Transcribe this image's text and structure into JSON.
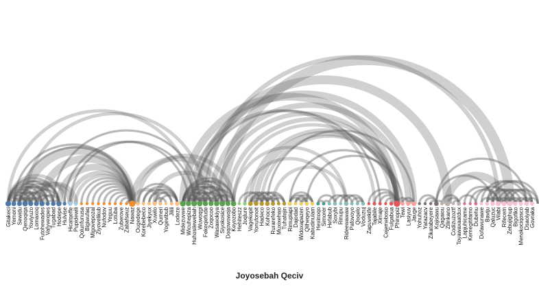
{
  "caption": "Joyosebah Qeciv",
  "nodes": [
    {
      "label": "Gitakeci",
      "color": "#4e79a7"
    },
    {
      "label": "Yemoni",
      "color": "#4e79a7"
    },
    {
      "label": "Sewidu",
      "color": "#4e79a7"
    },
    {
      "label": "Qenoqiqa",
      "color": "#4e79a7"
    },
    {
      "label": "Yoviyuzo",
      "color": "#4e79a7"
    },
    {
      "label": "Lomaxoq",
      "color": "#4e79a7"
    },
    {
      "label": "Futohewades",
      "color": "#4e79a7"
    },
    {
      "label": "Vafyvexpes",
      "color": "#4e79a7"
    },
    {
      "label": "Tugabad",
      "color": "#4e79a7"
    },
    {
      "label": "Hodepe",
      "color": "#4e79a7"
    },
    {
      "label": "Hulvise",
      "color": "#4e79a7"
    },
    {
      "label": "Hicatqeffe",
      "color": "#a0cbe8"
    },
    {
      "label": "Pupidewili",
      "color": "#a0cbe8"
    },
    {
      "label": "Qolunfunusa",
      "color": "#f28e2b"
    },
    {
      "label": "Bigiwufaq",
      "color": "#f28e2b"
    },
    {
      "label": "Migovepozal",
      "color": "#f28e2b"
    },
    {
      "label": "Ziyovelikub",
      "color": "#f28e2b"
    },
    {
      "label": "Nufodov",
      "color": "#f28e2b"
    },
    {
      "label": "Yeguu",
      "color": "#f28e2b"
    },
    {
      "label": "Lotuba",
      "color": "#f28e2b"
    },
    {
      "label": "Zuberove",
      "color": "#f28e2b"
    },
    {
      "label": "Zabafseuz",
      "color": "#f28e2b"
    },
    {
      "label": "Nawaz",
      "color": "#f28e2b"
    },
    {
      "label": "Ougedege",
      "color": "#ffbe7d"
    },
    {
      "label": "Korebebeco",
      "color": "#ffbe7d"
    },
    {
      "label": "Jiyekyux",
      "color": "#ffbe7d"
    },
    {
      "label": "Xuwilo",
      "color": "#ffbe7d"
    },
    {
      "label": "Qumeri",
      "color": "#ffbe7d"
    },
    {
      "label": "Yogevibub",
      "color": "#ffbe7d"
    },
    {
      "label": "Jilili",
      "color": "#ffbe7d"
    },
    {
      "label": "Lodeze",
      "color": "#ffbe7d"
    },
    {
      "label": "Midezuvwe",
      "color": "#59a14f"
    },
    {
      "label": "Wicuhepiza",
      "color": "#59a14f"
    },
    {
      "label": "Huhosilewebah",
      "color": "#59a14f"
    },
    {
      "label": "Wuwoqgi",
      "color": "#59a14f"
    },
    {
      "label": "Fekeqiefude",
      "color": "#59a14f"
    },
    {
      "label": "Zoqocoo",
      "color": "#59a14f"
    },
    {
      "label": "Wasawokiya",
      "color": "#59a14f"
    },
    {
      "label": "Siyokosice",
      "color": "#59a14f"
    },
    {
      "label": "Doqowowoja",
      "color": "#59a14f"
    },
    {
      "label": "Keyozobo",
      "color": "#59a14f"
    },
    {
      "label": "Hehiteszz",
      "color": "#8cd17d"
    },
    {
      "label": "Joqlure",
      "color": "#8cd17d"
    },
    {
      "label": "Vagekopit",
      "color": "#b6992d"
    },
    {
      "label": "Yonufonoit",
      "color": "#b6992d"
    },
    {
      "label": "Hadeco",
      "color": "#b6992d"
    },
    {
      "label": "Kohoco",
      "color": "#b6992d"
    },
    {
      "label": "Rurarefeko",
      "color": "#b6992d"
    },
    {
      "label": "Muxixehwo",
      "color": "#b6992d"
    },
    {
      "label": "Tuhafejin",
      "color": "#b6992d"
    },
    {
      "label": "Rimupiapi",
      "color": "#f1ce63"
    },
    {
      "label": "Dajodad",
      "color": "#f1ce63"
    },
    {
      "label": "Widoxapazen",
      "color": "#f1ce63"
    },
    {
      "label": "Qilheqeyo",
      "color": "#f1ce63"
    },
    {
      "label": "Kabudinulam",
      "color": "#f1ce63"
    },
    {
      "label": "Hexinoqo",
      "color": "#499894"
    },
    {
      "label": "Simorer",
      "color": "#499894"
    },
    {
      "label": "Hefabub",
      "color": "#86bcb6"
    },
    {
      "label": "Soxybi",
      "color": "#86bcb6"
    },
    {
      "label": "Rinupu",
      "color": "#86bcb6"
    },
    {
      "label": "Rideewawaw",
      "color": "#86bcb6"
    },
    {
      "label": "Pafovoyo",
      "color": "#86bcb6"
    },
    {
      "label": "Qoqelo",
      "color": "#86bcb6"
    },
    {
      "label": "Voduzuj",
      "color": "#86bcb6"
    },
    {
      "label": "Zapuvekife",
      "color": "#e15759"
    },
    {
      "label": "Tajabile",
      "color": "#e15759"
    },
    {
      "label": "Ximaje",
      "color": "#e15759"
    },
    {
      "label": "Cejemeboso",
      "color": "#e15759"
    },
    {
      "label": "Fulgabua",
      "color": "#e15759"
    },
    {
      "label": "Phinopiz",
      "color": "#e15759"
    },
    {
      "label": "Tewi",
      "color": "#ff9d9a"
    },
    {
      "label": "Lasiyuv",
      "color": "#ff9d9a"
    },
    {
      "label": "Jauge",
      "color": "#ff9d9a"
    },
    {
      "label": "Yohuhoz",
      "color": "#79706e"
    },
    {
      "label": "Yatazacv",
      "color": "#79706e"
    },
    {
      "label": "Zikatabeyere",
      "color": "#79706e"
    },
    {
      "label": "Kojisawu",
      "color": "#79706e"
    },
    {
      "label": "Qagaiou",
      "color": "#bab0ac"
    },
    {
      "label": "Zilinkano",
      "color": "#bab0ac"
    },
    {
      "label": "Codizuzoztf",
      "color": "#bab0ac"
    },
    {
      "label": "Toyawaxaatdux",
      "color": "#bab0ac"
    },
    {
      "label": "Lapjuhicame",
      "color": "#d37295"
    },
    {
      "label": "Kemegitifamo",
      "color": "#d37295"
    },
    {
      "label": "Dubehu",
      "color": "#d37295"
    },
    {
      "label": "Dofawunawe",
      "color": "#fabfd2"
    },
    {
      "label": "Baviju",
      "color": "#fabfd2"
    },
    {
      "label": "Qaluzuc",
      "color": "#fabfd2"
    },
    {
      "label": "Vilabi",
      "color": "#fabfd2"
    },
    {
      "label": "Rifecem",
      "color": "#fabfd2"
    },
    {
      "label": "Zebujighup",
      "color": "#fabfd2"
    },
    {
      "label": "Bigofiko",
      "color": "#fabfd2"
    },
    {
      "label": "Menokociqosco",
      "color": "#fabfd2"
    },
    {
      "label": "Dsaoiyab",
      "color": "#fabfd2"
    },
    {
      "label": "Govraka",
      "color": "#fabfd2"
    }
  ],
  "links": [
    {
      "source": 0,
      "target": 1,
      "weight": 2
    },
    {
      "source": 0,
      "target": 2,
      "weight": 2
    },
    {
      "source": 0,
      "target": 3,
      "weight": 2
    },
    {
      "source": 0,
      "target": 4,
      "weight": 2
    },
    {
      "source": 0,
      "target": 5,
      "weight": 2
    },
    {
      "source": 0,
      "target": 6,
      "weight": 2
    },
    {
      "source": 0,
      "target": 7,
      "weight": 2
    },
    {
      "source": 0,
      "target": 8,
      "weight": 2
    },
    {
      "source": 0,
      "target": 9,
      "weight": 2
    },
    {
      "source": 1,
      "target": 3,
      "weight": 2
    },
    {
      "source": 1,
      "target": 5,
      "weight": 2
    },
    {
      "source": 1,
      "target": 7,
      "weight": 2
    },
    {
      "source": 1,
      "target": 9,
      "weight": 2
    },
    {
      "source": 2,
      "target": 4,
      "weight": 2
    },
    {
      "source": 2,
      "target": 6,
      "weight": 2
    },
    {
      "source": 2,
      "target": 8,
      "weight": 2
    },
    {
      "source": 3,
      "target": 5,
      "weight": 2
    },
    {
      "source": 3,
      "target": 7,
      "weight": 2
    },
    {
      "source": 4,
      "target": 6,
      "weight": 2
    },
    {
      "source": 4,
      "target": 9,
      "weight": 2
    },
    {
      "source": 5,
      "target": 8,
      "weight": 2
    },
    {
      "source": 6,
      "target": 9,
      "weight": 2
    },
    {
      "source": 1,
      "target": 2,
      "weight": 2
    },
    {
      "source": 3,
      "target": 4,
      "weight": 2
    },
    {
      "source": 5,
      "target": 6,
      "weight": 2
    },
    {
      "source": 7,
      "target": 8,
      "weight": 2
    },
    {
      "source": 8,
      "target": 9,
      "weight": 2
    },
    {
      "source": 2,
      "target": 9,
      "weight": 2
    },
    {
      "source": 0,
      "target": 10,
      "weight": 3
    },
    {
      "source": 4,
      "target": 11,
      "weight": 5
    },
    {
      "source": 5,
      "target": 12,
      "weight": 4
    },
    {
      "source": 3,
      "target": 22,
      "weight": 8
    },
    {
      "source": 6,
      "target": 22,
      "weight": 7
    },
    {
      "source": 9,
      "target": 22,
      "weight": 6
    },
    {
      "source": 1,
      "target": 22,
      "weight": 2
    },
    {
      "source": 2,
      "target": 22,
      "weight": 2
    },
    {
      "source": 13,
      "target": 22,
      "weight": 2
    },
    {
      "source": 14,
      "target": 22,
      "weight": 2
    },
    {
      "source": 15,
      "target": 22,
      "weight": 2
    },
    {
      "source": 16,
      "target": 22,
      "weight": 2
    },
    {
      "source": 17,
      "target": 22,
      "weight": 2
    },
    {
      "source": 18,
      "target": 22,
      "weight": 2
    },
    {
      "source": 19,
      "target": 22,
      "weight": 2
    },
    {
      "source": 20,
      "target": 22,
      "weight": 2
    },
    {
      "source": 21,
      "target": 22,
      "weight": 2
    },
    {
      "source": 11,
      "target": 22,
      "weight": 4
    },
    {
      "source": 12,
      "target": 22,
      "weight": 3
    },
    {
      "source": 0,
      "target": 33,
      "weight": 3
    },
    {
      "source": 3,
      "target": 35,
      "weight": 3
    },
    {
      "source": 8,
      "target": 34,
      "weight": 2
    },
    {
      "source": 10,
      "target": 32,
      "weight": 2
    },
    {
      "source": 11,
      "target": 33,
      "weight": 2
    },
    {
      "source": 24,
      "target": 29,
      "weight": 2
    },
    {
      "source": 24,
      "target": 30,
      "weight": 2
    },
    {
      "source": 25,
      "target": 29,
      "weight": 2
    },
    {
      "source": 25,
      "target": 30,
      "weight": 2
    },
    {
      "source": 26,
      "target": 30,
      "weight": 2
    },
    {
      "source": 26,
      "target": 28,
      "weight": 2
    },
    {
      "source": 23,
      "target": 30,
      "weight": 2
    },
    {
      "source": 27,
      "target": 30,
      "weight": 2
    },
    {
      "source": 22,
      "target": 27,
      "weight": 3
    },
    {
      "source": 23,
      "target": 40,
      "weight": 4
    },
    {
      "source": 22,
      "target": 38,
      "weight": 5
    },
    {
      "source": 26,
      "target": 37,
      "weight": 4
    },
    {
      "source": 31,
      "target": 32,
      "weight": 2
    },
    {
      "source": 31,
      "target": 33,
      "weight": 2
    },
    {
      "source": 31,
      "target": 34,
      "weight": 2
    },
    {
      "source": 31,
      "target": 35,
      "weight": 2
    },
    {
      "source": 31,
      "target": 36,
      "weight": 2
    },
    {
      "source": 31,
      "target": 37,
      "weight": 2
    },
    {
      "source": 31,
      "target": 38,
      "weight": 2
    },
    {
      "source": 31,
      "target": 39,
      "weight": 2
    },
    {
      "source": 31,
      "target": 40,
      "weight": 2
    },
    {
      "source": 32,
      "target": 34,
      "weight": 2
    },
    {
      "source": 32,
      "target": 36,
      "weight": 2
    },
    {
      "source": 32,
      "target": 38,
      "weight": 2
    },
    {
      "source": 32,
      "target": 40,
      "weight": 2
    },
    {
      "source": 33,
      "target": 35,
      "weight": 2
    },
    {
      "source": 33,
      "target": 37,
      "weight": 2
    },
    {
      "source": 33,
      "target": 39,
      "weight": 2
    },
    {
      "source": 34,
      "target": 36,
      "weight": 2
    },
    {
      "source": 34,
      "target": 38,
      "weight": 2
    },
    {
      "source": 35,
      "target": 37,
      "weight": 2
    },
    {
      "source": 35,
      "target": 40,
      "weight": 2
    },
    {
      "source": 36,
      "target": 39,
      "weight": 2
    },
    {
      "source": 37,
      "target": 40,
      "weight": 2
    },
    {
      "source": 32,
      "target": 33,
      "weight": 2
    },
    {
      "source": 34,
      "target": 35,
      "weight": 2
    },
    {
      "source": 36,
      "target": 37,
      "weight": 2
    },
    {
      "source": 38,
      "target": 39,
      "weight": 2
    },
    {
      "source": 39,
      "target": 40,
      "weight": 2
    },
    {
      "source": 31,
      "target": 69,
      "weight": 7
    },
    {
      "source": 33,
      "target": 72,
      "weight": 6
    },
    {
      "source": 34,
      "target": 78,
      "weight": 8
    },
    {
      "source": 36,
      "target": 71,
      "weight": 5
    },
    {
      "source": 37,
      "target": 69,
      "weight": 4
    },
    {
      "source": 38,
      "target": 89,
      "weight": 9
    },
    {
      "source": 35,
      "target": 87,
      "weight": 4
    },
    {
      "source": 40,
      "target": 68,
      "weight": 3
    },
    {
      "source": 39,
      "target": 69,
      "weight": 4
    },
    {
      "source": 40,
      "target": 60,
      "weight": 3
    },
    {
      "source": 32,
      "target": 65,
      "weight": 3
    },
    {
      "source": 33,
      "target": 66,
      "weight": 2
    },
    {
      "source": 41,
      "target": 45,
      "weight": 2
    },
    {
      "source": 42,
      "target": 46,
      "weight": 2
    },
    {
      "source": 43,
      "target": 44,
      "weight": 2
    },
    {
      "source": 43,
      "target": 45,
      "weight": 2
    },
    {
      "source": 43,
      "target": 46,
      "weight": 2
    },
    {
      "source": 43,
      "target": 47,
      "weight": 2
    },
    {
      "source": 44,
      "target": 46,
      "weight": 2
    },
    {
      "source": 44,
      "target": 48,
      "weight": 2
    },
    {
      "source": 45,
      "target": 47,
      "weight": 2
    },
    {
      "source": 45,
      "target": 49,
      "weight": 2
    },
    {
      "source": 46,
      "target": 48,
      "weight": 2
    },
    {
      "source": 46,
      "target": 49,
      "weight": 2
    },
    {
      "source": 47,
      "target": 49,
      "weight": 2
    },
    {
      "source": 43,
      "target": 69,
      "weight": 4
    },
    {
      "source": 44,
      "target": 69,
      "weight": 5
    },
    {
      "source": 45,
      "target": 69,
      "weight": 3
    },
    {
      "source": 46,
      "target": 72,
      "weight": 2
    },
    {
      "source": 47,
      "target": 60,
      "weight": 3
    },
    {
      "source": 42,
      "target": 58,
      "weight": 3
    },
    {
      "source": 50,
      "target": 52,
      "weight": 2
    },
    {
      "source": 50,
      "target": 53,
      "weight": 2
    },
    {
      "source": 50,
      "target": 54,
      "weight": 2
    },
    {
      "source": 51,
      "target": 53,
      "weight": 2
    },
    {
      "source": 51,
      "target": 54,
      "weight": 2
    },
    {
      "source": 52,
      "target": 54,
      "weight": 2
    },
    {
      "source": 52,
      "target": 53,
      "weight": 2
    },
    {
      "source": 50,
      "target": 69,
      "weight": 2
    },
    {
      "source": 53,
      "target": 70,
      "weight": 2
    },
    {
      "source": 55,
      "target": 56,
      "weight": 2
    },
    {
      "source": 55,
      "target": 58,
      "weight": 2
    },
    {
      "source": 56,
      "target": 57,
      "weight": 2
    },
    {
      "source": 57,
      "target": 60,
      "weight": 2
    },
    {
      "source": 58,
      "target": 61,
      "weight": 2
    },
    {
      "source": 59,
      "target": 62,
      "weight": 2
    },
    {
      "source": 60,
      "target": 63,
      "weight": 2
    },
    {
      "source": 61,
      "target": 63,
      "weight": 2
    },
    {
      "source": 62,
      "target": 63,
      "weight": 2
    },
    {
      "source": 64,
      "target": 69,
      "weight": 2
    },
    {
      "source": 65,
      "target": 69,
      "weight": 2
    },
    {
      "source": 66,
      "target": 69,
      "weight": 2
    },
    {
      "source": 67,
      "target": 69,
      "weight": 2
    },
    {
      "source": 68,
      "target": 69,
      "weight": 3
    },
    {
      "source": 69,
      "target": 70,
      "weight": 3
    },
    {
      "source": 69,
      "target": 71,
      "weight": 2
    },
    {
      "source": 71,
      "target": 72,
      "weight": 2
    },
    {
      "source": 70,
      "target": 72,
      "weight": 2
    },
    {
      "source": 73,
      "target": 76,
      "weight": 2
    },
    {
      "source": 74,
      "target": 76,
      "weight": 2
    },
    {
      "source": 75,
      "target": 76,
      "weight": 2
    },
    {
      "source": 76,
      "target": 77,
      "weight": 2
    },
    {
      "source": 77,
      "target": 80,
      "weight": 2
    },
    {
      "source": 78,
      "target": 80,
      "weight": 2
    },
    {
      "source": 79,
      "target": 80,
      "weight": 2
    },
    {
      "source": 76,
      "target": 86,
      "weight": 2
    },
    {
      "source": 80,
      "target": 83,
      "weight": 2
    },
    {
      "source": 81,
      "target": 87,
      "weight": 2
    },
    {
      "source": 82,
      "target": 87,
      "weight": 2
    },
    {
      "source": 83,
      "target": 89,
      "weight": 2
    },
    {
      "source": 78,
      "target": 88,
      "weight": 7
    },
    {
      "source": 76,
      "target": 92,
      "weight": 2
    },
    {
      "source": 84,
      "target": 86,
      "weight": 2
    },
    {
      "source": 85,
      "target": 87,
      "weight": 2
    },
    {
      "source": 86,
      "target": 88,
      "weight": 2
    },
    {
      "source": 87,
      "target": 89,
      "weight": 2
    },
    {
      "source": 88,
      "target": 90,
      "weight": 2
    },
    {
      "source": 89,
      "target": 91,
      "weight": 2
    },
    {
      "source": 90,
      "target": 92,
      "weight": 2
    },
    {
      "source": 91,
      "target": 93,
      "weight": 2
    },
    {
      "source": 92,
      "target": 94,
      "weight": 2
    },
    {
      "source": 86,
      "target": 91,
      "weight": 2
    },
    {
      "source": 87,
      "target": 92,
      "weight": 2
    },
    {
      "source": 88,
      "target": 93,
      "weight": 2
    },
    {
      "source": 89,
      "target": 94,
      "weight": 2
    },
    {
      "source": 86,
      "target": 94,
      "weight": 2
    },
    {
      "source": 85,
      "target": 93,
      "weight": 2
    },
    {
      "source": 87,
      "target": 88,
      "weight": 2
    },
    {
      "source": 90,
      "target": 91,
      "weight": 2
    },
    {
      "source": 92,
      "target": 93,
      "weight": 2
    },
    {
      "source": 85,
      "target": 90,
      "weight": 2
    },
    {
      "source": 84,
      "target": 92,
      "weight": 2
    }
  ]
}
